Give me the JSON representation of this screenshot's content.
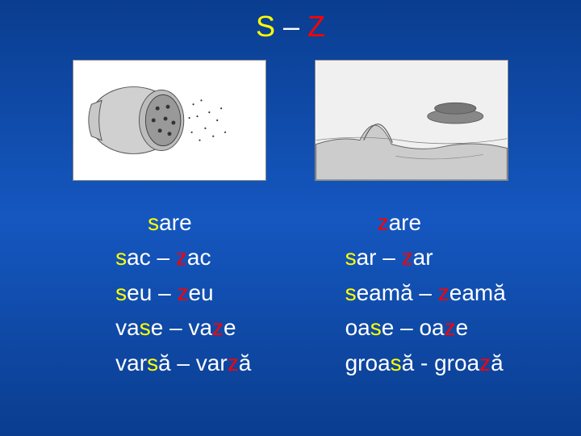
{
  "title": {
    "s": "S",
    "dash": " – ",
    "z": "Z",
    "s_color": "#ffff00",
    "dash_color": "#ffffff",
    "z_color": "#ff0000",
    "fontsize": 36
  },
  "background_gradient": [
    "#0a3d8f",
    "#1557c0",
    "#0a3d8f"
  ],
  "highlight_colors": {
    "s": "#ffff00",
    "z": "#ff0000",
    "text": "#ffffff"
  },
  "text_fontsize": 28,
  "left_column": {
    "header": {
      "pre": "",
      "hl": "s",
      "post": "are",
      "hl_type": "s"
    },
    "lines": [
      {
        "parts": [
          {
            "hl": "s",
            "t": "s"
          },
          {
            "t": "ac – "
          },
          {
            "hl": "z",
            "t": "z"
          },
          {
            "t": "ac"
          }
        ]
      },
      {
        "parts": [
          {
            "hl": "s",
            "t": "s"
          },
          {
            "t": "eu – "
          },
          {
            "hl": "z",
            "t": "z"
          },
          {
            "t": "eu"
          }
        ]
      },
      {
        "parts": [
          {
            "t": "va"
          },
          {
            "hl": "s",
            "t": "s"
          },
          {
            "t": "e – va"
          },
          {
            "hl": "z",
            "t": "z"
          },
          {
            "t": "e"
          }
        ]
      },
      {
        "parts": [
          {
            "t": "var"
          },
          {
            "hl": "s",
            "t": "s"
          },
          {
            "t": "ă – var"
          },
          {
            "hl": "z",
            "t": "z"
          },
          {
            "t": "ă"
          }
        ]
      }
    ]
  },
  "right_column": {
    "header": {
      "pre": "",
      "hl": "z",
      "post": "are",
      "hl_type": "z"
    },
    "lines": [
      {
        "parts": [
          {
            "t": " "
          },
          {
            "hl": "s",
            "t": "s"
          },
          {
            "t": "ar – "
          },
          {
            "hl": "z",
            "t": "z"
          },
          {
            "t": "ar"
          }
        ]
      },
      {
        "parts": [
          {
            "t": " "
          },
          {
            "hl": "s",
            "t": "s"
          },
          {
            "t": "eamă – "
          },
          {
            "hl": "z",
            "t": "z"
          },
          {
            "t": "eamă"
          }
        ]
      },
      {
        "parts": [
          {
            "t": " oa"
          },
          {
            "hl": "s",
            "t": "s"
          },
          {
            "t": "e – oa"
          },
          {
            "hl": "z",
            "t": "z"
          },
          {
            "t": "e"
          }
        ]
      },
      {
        "parts": [
          {
            "t": "groa"
          },
          {
            "hl": "s",
            "t": "s"
          },
          {
            "t": "ă - groa"
          },
          {
            "hl": "z",
            "t": "z"
          },
          {
            "t": "ă"
          }
        ]
      }
    ]
  },
  "images": {
    "left_alt": "salt-shaker-drawing",
    "right_alt": "landscape-hills-drawing",
    "bg": "#ffffff",
    "stroke": "#333333"
  }
}
